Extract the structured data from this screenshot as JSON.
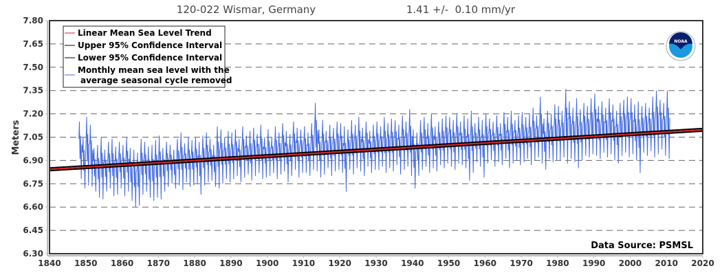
{
  "title": "120-022 Wismar, Germany",
  "trend_text": "1.41 +/-  0.10 mm/yr",
  "data_source": "Data Source: PSMSL",
  "logo_text": "NOAA",
  "chart_data": {
    "type": "line",
    "xlabel": "",
    "ylabel": "Meters",
    "xlim": [
      1840,
      2020
    ],
    "ylim": [
      6.3,
      7.8
    ],
    "x_ticks": [
      "1840",
      "1850",
      "1860",
      "1870",
      "1880",
      "1890",
      "1900",
      "1910",
      "1920",
      "1930",
      "1940",
      "1950",
      "1960",
      "1970",
      "1980",
      "1990",
      "2000",
      "2010",
      "2020"
    ],
    "y_ticks": [
      "6.30",
      "6.45",
      "6.60",
      "6.75",
      "6.90",
      "7.05",
      "7.20",
      "7.35",
      "7.50",
      "7.65",
      "7.80"
    ],
    "grid": "horizontal dashed",
    "legend_placement": "top-left",
    "legend": [
      {
        "label": "Linear Mean Sea Level Trend",
        "color": "#d62020"
      },
      {
        "label": "Upper 95% Confidence Interval",
        "color": "#000000"
      },
      {
        "label": "Lower 95% Confidence Interval",
        "color": "#000000"
      },
      {
        "label": "Monthly mean sea level with the",
        "label2": "average seasonal cycle removed",
        "color": "#4169e1"
      }
    ],
    "trend": {
      "x": [
        1840,
        2020
      ],
      "y": [
        6.843,
        7.097
      ],
      "rate_mm_per_yr": 1.41,
      "ci_mm_per_yr": 0.1
    },
    "monthly_series": {
      "start_year": 1848,
      "yearly_high": [
        7.15,
        7.05,
        7.18,
        7.13,
        6.98,
        7.0,
        7.05,
        6.97,
        7.02,
        7.04,
        6.99,
        7.02,
        7.0,
        7.05,
        6.98,
        6.97,
        6.95,
        7.04,
        7.02,
        6.99,
        7.0,
        7.03,
        7.06,
        6.98,
        7.02,
        7.0,
        6.97,
        7.04,
        7.08,
        7.01,
        7.05,
        7.03,
        7.05,
        7.02,
        7.06,
        7.08,
        7.04,
        7.0,
        7.12,
        7.1,
        7.05,
        7.09,
        7.08,
        7.1,
        7.04,
        7.12,
        7.06,
        7.09,
        7.11,
        7.07,
        7.13,
        7.05,
        7.1,
        7.05,
        7.12,
        7.08,
        7.14,
        7.09,
        7.07,
        7.15,
        7.11,
        7.1,
        7.12,
        7.08,
        7.14,
        7.27,
        7.1,
        7.16,
        7.09,
        7.13,
        7.11,
        7.15,
        7.14,
        7.12,
        7.1,
        7.16,
        7.13,
        7.18,
        7.11,
        7.15,
        7.09,
        7.13,
        7.15,
        7.12,
        7.18,
        7.14,
        7.17,
        7.16,
        7.13,
        7.19,
        7.15,
        7.23,
        7.1,
        7.08,
        7.16,
        7.18,
        7.14,
        7.2,
        7.12,
        7.15,
        7.17,
        7.19,
        7.18,
        7.16,
        7.2,
        7.15,
        7.19,
        7.17,
        7.22,
        7.14,
        7.18,
        7.16,
        7.2,
        7.17,
        7.15,
        7.19,
        7.14,
        7.21,
        7.18,
        7.22,
        7.16,
        7.19,
        7.21,
        7.18,
        7.2,
        7.24,
        7.19,
        7.31,
        7.17,
        7.22,
        7.2,
        7.26,
        7.25,
        7.22,
        7.36,
        7.28,
        7.24,
        7.3,
        7.23,
        7.27,
        7.25,
        7.3,
        7.33,
        7.25,
        7.28,
        7.24,
        7.3,
        7.26,
        7.22,
        7.27,
        7.29,
        7.31,
        7.3,
        7.26,
        7.28,
        7.25,
        7.27,
        7.24,
        7.31,
        7.35,
        7.29,
        7.27,
        7.35
      ],
      "yearly_low": [
        6.78,
        6.72,
        6.74,
        6.73,
        6.7,
        6.66,
        6.65,
        6.7,
        6.72,
        6.67,
        6.68,
        6.72,
        6.67,
        6.7,
        6.64,
        6.6,
        6.61,
        6.68,
        6.7,
        6.66,
        6.64,
        6.66,
        6.65,
        6.7,
        6.73,
        6.75,
        6.72,
        6.74,
        6.71,
        6.76,
        6.73,
        6.74,
        6.75,
        6.68,
        6.74,
        6.76,
        6.77,
        6.73,
        6.72,
        6.75,
        6.78,
        6.76,
        6.78,
        6.8,
        6.76,
        6.79,
        6.81,
        6.77,
        6.8,
        6.82,
        6.78,
        6.79,
        6.8,
        6.82,
        6.78,
        6.81,
        6.83,
        6.76,
        6.8,
        6.84,
        6.79,
        6.82,
        6.82,
        6.8,
        6.84,
        6.83,
        6.79,
        6.81,
        6.85,
        6.8,
        6.83,
        6.84,
        6.82,
        6.7,
        6.84,
        6.81,
        6.85,
        6.83,
        6.8,
        6.86,
        6.82,
        6.84,
        6.84,
        6.86,
        6.82,
        6.85,
        6.83,
        6.87,
        6.81,
        6.84,
        6.86,
        6.8,
        6.72,
        6.8,
        6.84,
        6.86,
        6.82,
        6.85,
        6.83,
        6.87,
        6.85,
        6.88,
        6.86,
        6.84,
        6.88,
        6.87,
        6.85,
        6.77,
        6.82,
        6.89,
        6.86,
        6.79,
        6.88,
        6.9,
        6.86,
        6.89,
        6.87,
        6.91,
        6.85,
        6.88,
        6.9,
        6.87,
        6.89,
        6.91,
        6.87,
        6.9,
        6.92,
        6.88,
        6.84,
        6.91,
        6.89,
        6.9,
        6.9,
        6.92,
        6.88,
        6.91,
        6.89,
        6.85,
        6.9,
        6.93,
        6.92,
        6.94,
        6.93,
        6.91,
        6.95,
        6.92,
        6.94,
        6.9,
        6.88,
        6.93,
        6.95,
        6.92,
        6.94,
        6.9,
        6.82,
        6.95,
        6.93,
        6.96,
        6.92,
        6.94,
        6.97,
        6.93,
        6.91
      ]
    }
  }
}
